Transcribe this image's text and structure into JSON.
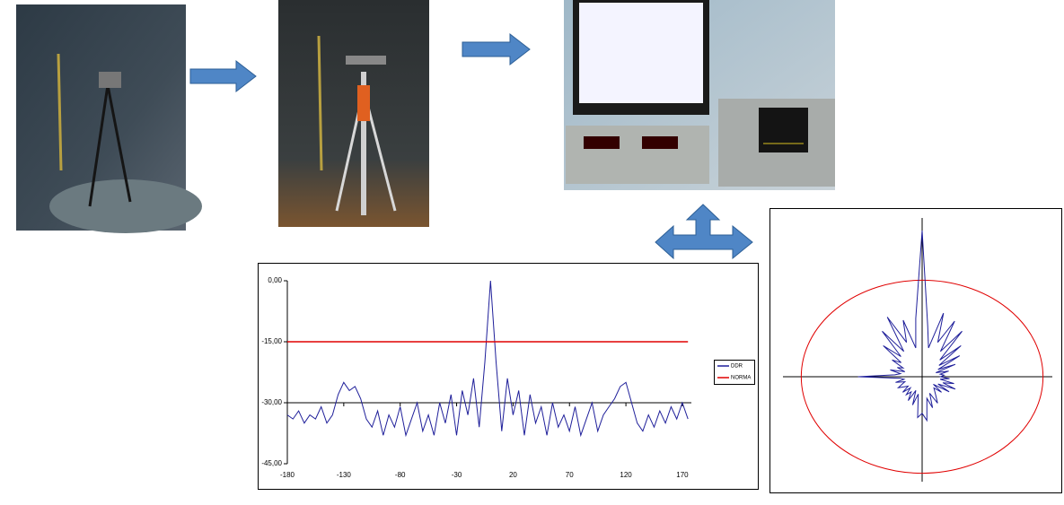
{
  "chart_data": [
    {
      "type": "line",
      "x": [
        -180,
        -175,
        -170,
        -165,
        -160,
        -155,
        -150,
        -145,
        -140,
        -135,
        -130,
        -125,
        -120,
        -115,
        -110,
        -105,
        -100,
        -95,
        -90,
        -85,
        -80,
        -75,
        -70,
        -65,
        -60,
        -55,
        -50,
        -45,
        -40,
        -35,
        -30,
        -25,
        -20,
        -15,
        -10,
        -5,
        0,
        5,
        10,
        15,
        20,
        25,
        30,
        35,
        40,
        45,
        50,
        55,
        60,
        65,
        70,
        75,
        80,
        85,
        90,
        95,
        100,
        105,
        110,
        115,
        120,
        125,
        130,
        135,
        140,
        145,
        150,
        155,
        160,
        165,
        170,
        175
      ],
      "series": [
        {
          "name": "DDR",
          "color": "#1f1f9a",
          "values": [
            -33,
            -34,
            -32,
            -35,
            -33,
            -34,
            -31,
            -35,
            -33,
            -28,
            -25,
            -27,
            -26,
            -29,
            -34,
            -36,
            -32,
            -38,
            -33,
            -36,
            -31,
            -38,
            -34,
            -30,
            -37,
            -33,
            -38,
            -30,
            -35,
            -28,
            -38,
            -27,
            -33,
            -24,
            -36,
            -20,
            0,
            -20,
            -37,
            -24,
            -33,
            -27,
            -38,
            -28,
            -35,
            -31,
            -38,
            -30,
            -36,
            -33,
            -37,
            -31,
            -38,
            -34,
            -30,
            -37,
            -33,
            -31,
            -29,
            -26,
            -25,
            -30,
            -35,
            -37,
            -33,
            -36,
            -32,
            -35,
            -31,
            -34,
            -30,
            -34
          ]
        },
        {
          "name": "NORMA",
          "color": "#e00000",
          "values": [
            -15,
            -15,
            -15,
            -15,
            -15,
            -15,
            -15,
            -15,
            -15,
            -15,
            -15,
            -15,
            -15,
            -15,
            -15,
            -15,
            -15,
            -15,
            -15,
            -15,
            -15,
            -15,
            -15,
            -15,
            -15,
            -15,
            -15,
            -15,
            -15,
            -15,
            -15,
            -15,
            -15,
            -15,
            -15,
            -15,
            -15,
            -15,
            -15,
            -15,
            -15,
            -15,
            -15,
            -15,
            -15,
            -15,
            -15,
            -15,
            -15,
            -15,
            -15,
            -15,
            -15,
            -15,
            -15,
            -15,
            -15,
            -15,
            -15,
            -15,
            -15,
            -15,
            -15,
            -15,
            -15,
            -15,
            -15,
            -15,
            -15,
            -15,
            -15,
            -15
          ]
        }
      ],
      "xlim": [
        -180,
        178
      ],
      "xticks": [
        -180,
        -130,
        -80,
        -30,
        20,
        70,
        120,
        170
      ],
      "ylim": [
        -45,
        0
      ],
      "yticks": [
        {
          "value": 0,
          "label": "0,00"
        },
        {
          "value": -15,
          "label": "-15,00"
        },
        {
          "value": -30,
          "label": "-30,00"
        },
        {
          "value": -45,
          "label": "-45,00"
        }
      ],
      "x_axis_crossing": -30,
      "legend": "right"
    },
    {
      "type": "polar",
      "theta": [
        0,
        5,
        10,
        15,
        20,
        25,
        30,
        35,
        40,
        45,
        50,
        55,
        60,
        65,
        70,
        75,
        80,
        85,
        90,
        95,
        100,
        105,
        110,
        115,
        120,
        125,
        130,
        135,
        140,
        145,
        150,
        155,
        160,
        165,
        170,
        175,
        180,
        185,
        190,
        195,
        200,
        205,
        210,
        215,
        220,
        225,
        230,
        235,
        240,
        245,
        250,
        255,
        260,
        265,
        270,
        275,
        280,
        285,
        290,
        295,
        300,
        305,
        310,
        315,
        320,
        325,
        330,
        335,
        340,
        345,
        350,
        355
      ],
      "values": [
        1.0,
        0.35,
        0.2,
        0.45,
        0.25,
        0.42,
        0.2,
        0.38,
        0.15,
        0.3,
        0.12,
        0.25,
        0.1,
        0.2,
        0.08,
        0.15,
        0.1,
        0.12,
        0.1,
        0.15,
        0.1,
        0.18,
        0.12,
        0.2,
        0.1,
        0.18,
        0.08,
        0.15,
        0.1,
        0.12,
        0.15,
        0.2,
        0.12,
        0.22,
        0.15,
        0.3,
        0.25,
        0.28,
        0.12,
        0.2,
        0.1,
        0.18,
        0.12,
        0.15,
        0.1,
        0.15,
        0.1,
        0.12,
        0.15,
        0.12,
        0.1,
        0.15,
        0.1,
        0.12,
        0.35,
        0.15,
        0.12,
        0.18,
        0.1,
        0.15,
        0.12,
        0.2,
        0.15,
        0.3,
        0.18,
        0.38,
        0.2,
        0.45,
        0.25,
        0.4,
        0.2,
        0.4
      ],
      "color": "#1f1f9a",
      "reference_radius": 0.66,
      "reference_color": "#e00000"
    }
  ]
}
